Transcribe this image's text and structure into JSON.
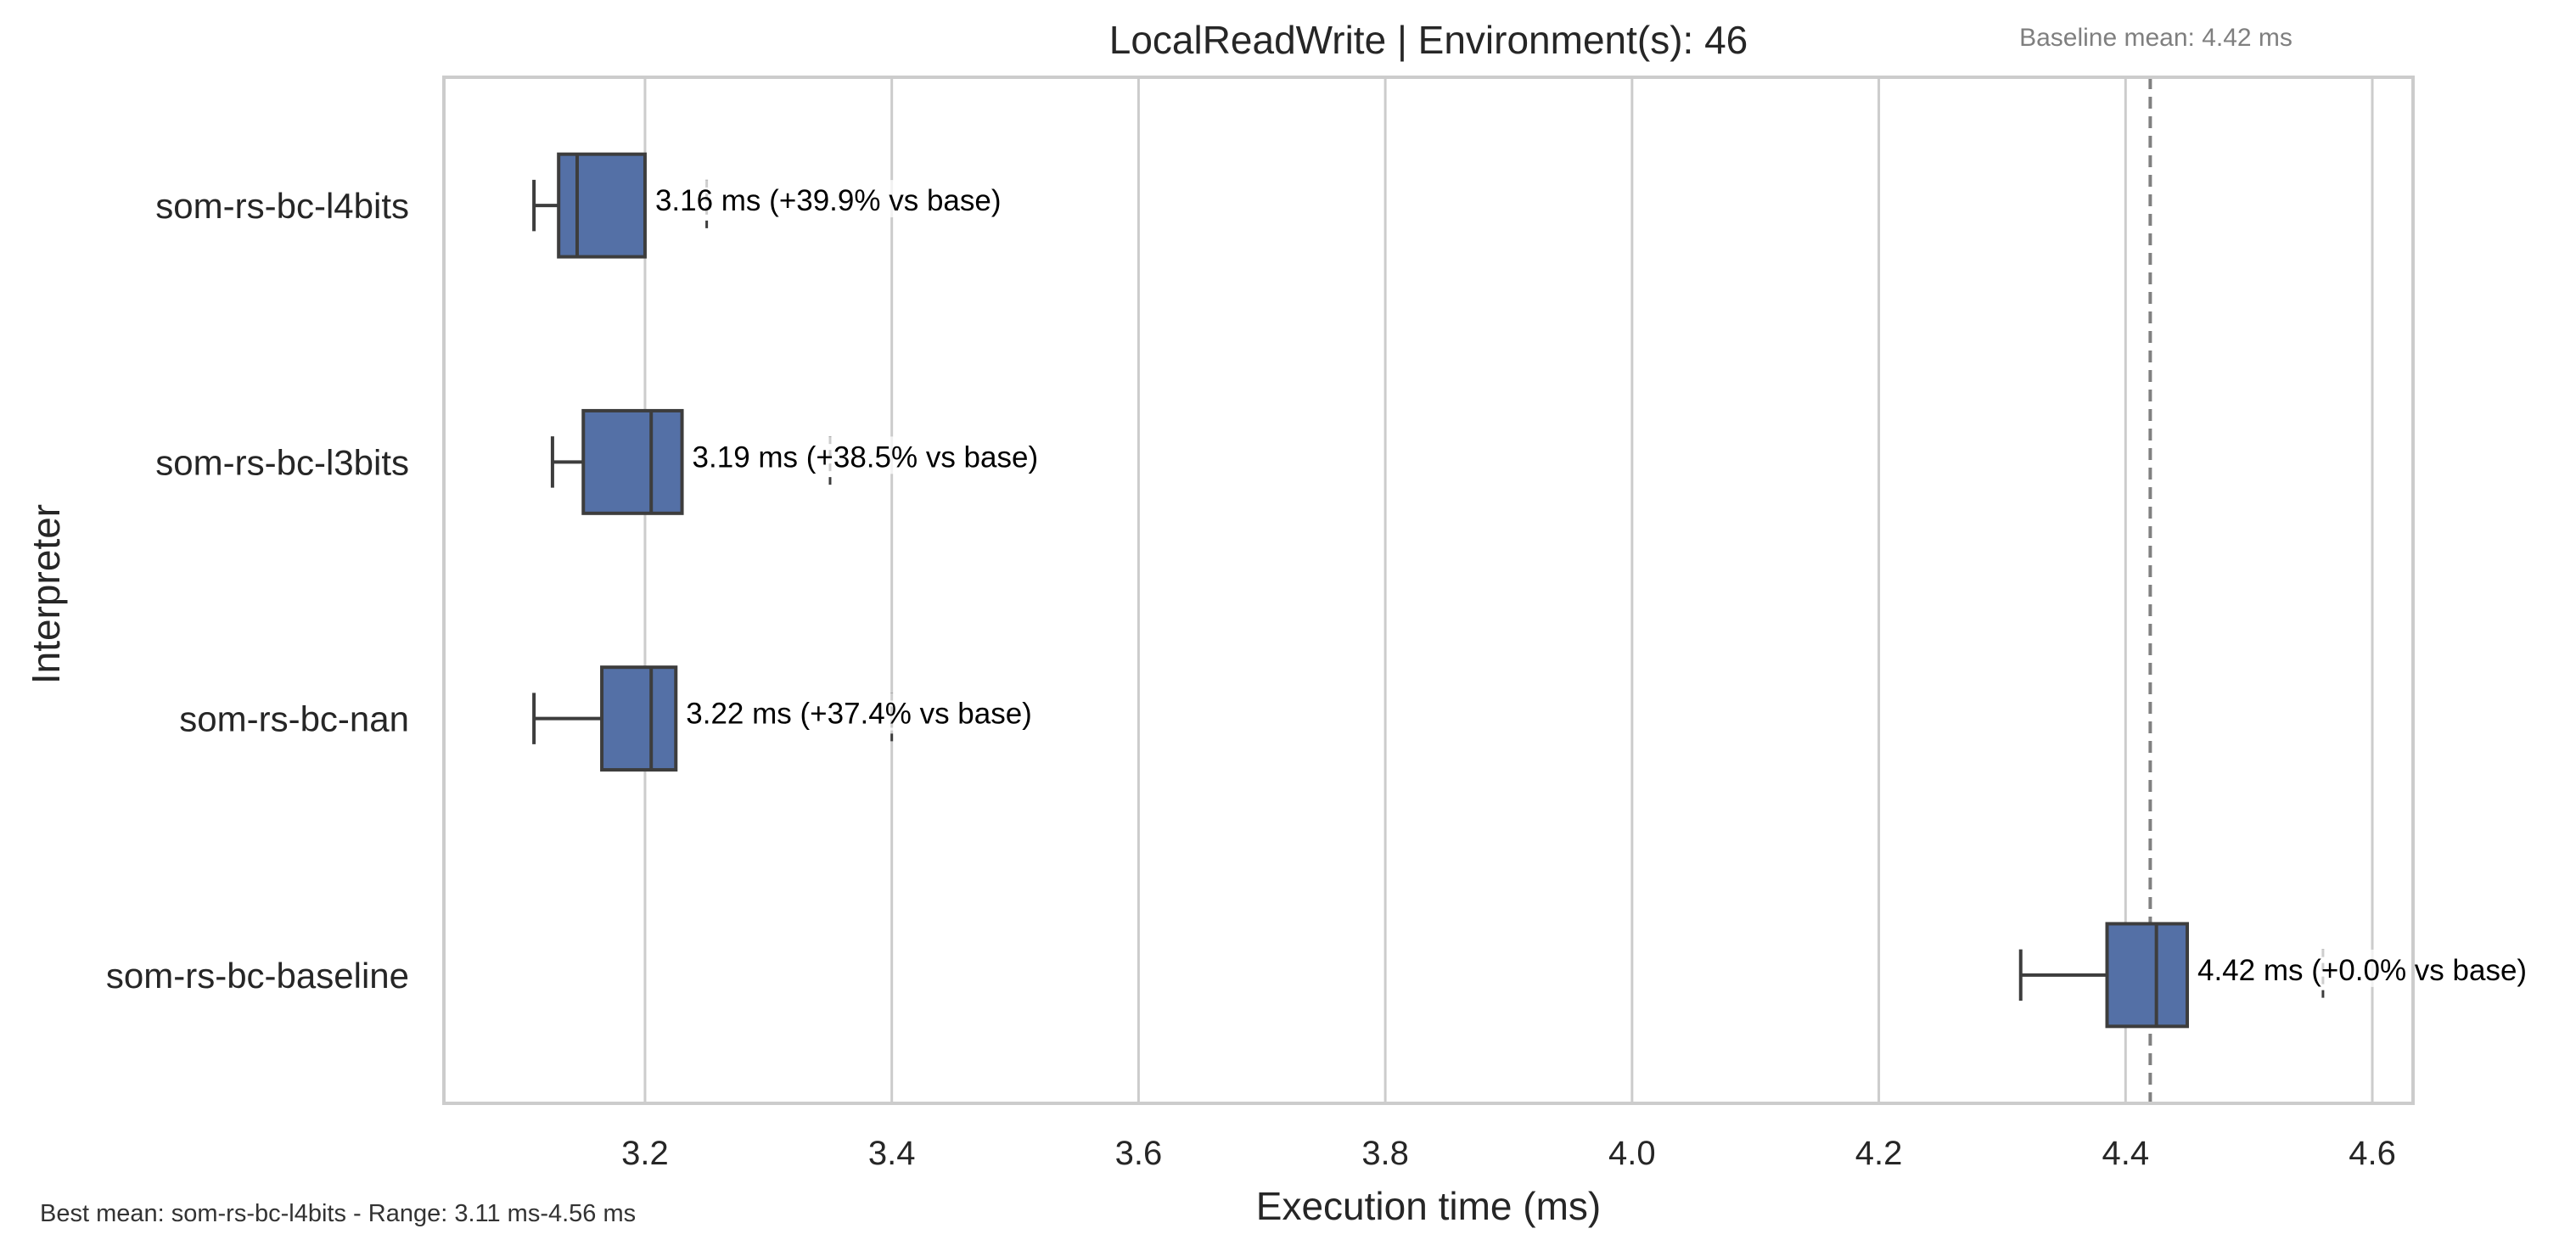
{
  "chart_data": {
    "type": "box",
    "orientation": "horizontal",
    "title": "LocalReadWrite | Environment(s): 46",
    "xlabel": "Execution time (ms)",
    "ylabel": "Interpreter",
    "xlim": [
      3.037,
      4.633
    ],
    "xticks": [
      "3.2",
      "3.4",
      "3.6",
      "3.8",
      "4.0",
      "4.2",
      "4.4",
      "4.6"
    ],
    "grid": true,
    "box_color": "#5470a6",
    "baseline_mean": 4.42,
    "baseline_note": "Baseline mean: 4.42 ms",
    "footer": "Best mean: som-rs-bc-l4bits - Range: 3.11 ms-4.56 ms",
    "series": [
      {
        "category": "som-rs-bc-l4bits",
        "whisker_low": 3.11,
        "q1": 3.13,
        "median": 3.145,
        "q3": 3.2,
        "whisker_high": 3.2,
        "outliers": [
          3.25
        ],
        "annotation": "3.16 ms  (+39.9% vs base)"
      },
      {
        "category": "som-rs-bc-l3bits",
        "whisker_low": 3.125,
        "q1": 3.15,
        "median": 3.205,
        "q3": 3.23,
        "whisker_high": 3.23,
        "outliers": [
          3.35
        ],
        "annotation": "3.19 ms  (+38.5% vs base)"
      },
      {
        "category": "som-rs-bc-nan",
        "whisker_low": 3.11,
        "q1": 3.165,
        "median": 3.205,
        "q3": 3.225,
        "whisker_high": 3.225,
        "outliers": [
          3.4
        ],
        "annotation": "3.22 ms  (+37.4% vs base)"
      },
      {
        "category": "som-rs-bc-baseline",
        "whisker_low": 4.315,
        "q1": 4.385,
        "median": 4.425,
        "q3": 4.45,
        "whisker_high": 4.45,
        "outliers": [
          4.56
        ],
        "annotation": "4.42 ms  (+0.0% vs base)"
      }
    ]
  }
}
